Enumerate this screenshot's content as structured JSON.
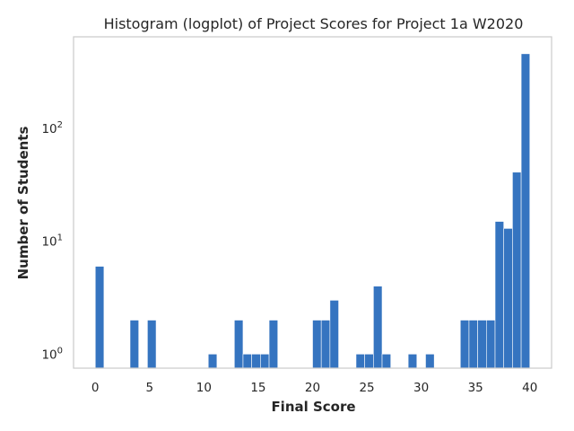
{
  "chart_data": {
    "type": "bar",
    "title": "Histogram (logplot) of Project Scores for Project 1a W2020",
    "xlabel": "Final Score",
    "ylabel": "Number of Students",
    "yscale": "log",
    "xlim": [
      -2,
      42
    ],
    "ylim": [
      0.75,
      650
    ],
    "grid": false,
    "bar_color": "#3574c0",
    "bin_width": 0.8,
    "x_ticks": [
      0,
      5,
      10,
      15,
      20,
      25,
      30,
      35,
      40
    ],
    "y_ticks": [
      {
        "value": 1,
        "base": "10",
        "exp": "0"
      },
      {
        "value": 10,
        "base": "10",
        "exp": "1"
      },
      {
        "value": 100,
        "base": "10",
        "exp": "2"
      }
    ],
    "bars": [
      {
        "x": 0.0,
        "count": 6
      },
      {
        "x": 3.2,
        "count": 2
      },
      {
        "x": 4.8,
        "count": 2
      },
      {
        "x": 10.4,
        "count": 1
      },
      {
        "x": 12.8,
        "count": 2
      },
      {
        "x": 13.6,
        "count": 1
      },
      {
        "x": 14.4,
        "count": 1
      },
      {
        "x": 15.2,
        "count": 1
      },
      {
        "x": 16.0,
        "count": 2
      },
      {
        "x": 20.0,
        "count": 2
      },
      {
        "x": 20.8,
        "count": 2
      },
      {
        "x": 21.6,
        "count": 3
      },
      {
        "x": 24.0,
        "count": 1
      },
      {
        "x": 24.8,
        "count": 1
      },
      {
        "x": 25.6,
        "count": 4
      },
      {
        "x": 26.4,
        "count": 1
      },
      {
        "x": 28.8,
        "count": 1
      },
      {
        "x": 30.4,
        "count": 1
      },
      {
        "x": 33.6,
        "count": 2
      },
      {
        "x": 34.4,
        "count": 2
      },
      {
        "x": 35.2,
        "count": 2
      },
      {
        "x": 36.0,
        "count": 2
      },
      {
        "x": 36.8,
        "count": 15
      },
      {
        "x": 37.6,
        "count": 13
      },
      {
        "x": 38.4,
        "count": 41
      },
      {
        "x": 39.2,
        "count": 460
      }
    ]
  }
}
